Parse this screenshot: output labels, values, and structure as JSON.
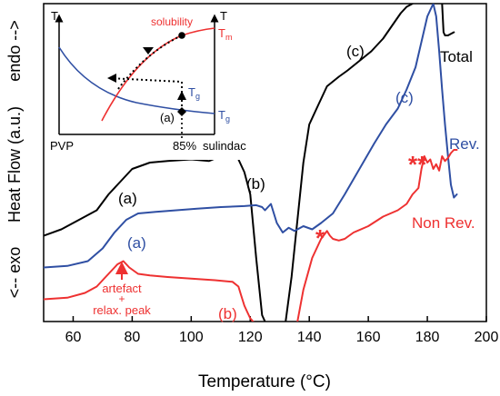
{
  "chart_data": {
    "type": "line",
    "xlabel": "Temperature (°C)",
    "ylabel": "Heat Flow (a.u.)",
    "ylabel_top": "endo -->",
    "ylabel_bottom": "<-- exo",
    "xlim": [
      50,
      200
    ],
    "xticks": [
      60,
      80,
      100,
      120,
      140,
      160,
      180,
      200
    ],
    "ylim": [
      0,
      100
    ],
    "grid": false,
    "series": [
      {
        "name": "Total",
        "color": "#000000",
        "x": [
          50,
          56,
          62,
          68,
          72,
          76,
          80,
          86,
          92,
          100,
          106,
          110,
          112,
          114,
          116,
          118,
          120,
          122,
          124,
          125
        ],
        "y": [
          27,
          29,
          32,
          35,
          40,
          44,
          48,
          50,
          50.5,
          51,
          50.5,
          52,
          54,
          53,
          51,
          47,
          40,
          20,
          2,
          0
        ]
      },
      {
        "name": "Total",
        "color": "#000000",
        "x": [
          132,
          134,
          136,
          138,
          140,
          143,
          146,
          150,
          153,
          157,
          161,
          165,
          168,
          171,
          173,
          175
        ],
        "y": [
          0,
          14,
          32,
          50,
          62,
          68,
          74,
          77,
          79,
          82,
          85,
          89,
          93,
          97,
          99,
          100
        ]
      },
      {
        "name": "Total",
        "color": "#000000",
        "x": [
          185,
          185.5,
          186,
          187,
          188,
          189
        ],
        "y": [
          100,
          91,
          90,
          90,
          90.5,
          91
        ]
      },
      {
        "name": "Rev.",
        "color": "#2f4fa3",
        "x": [
          50,
          58,
          65,
          70,
          74,
          78,
          82,
          88,
          95,
          102,
          110,
          118,
          122,
          124,
          125,
          127,
          129,
          131,
          133,
          135,
          138,
          141,
          144,
          148,
          152,
          157,
          162,
          166,
          170,
          173,
          176,
          178,
          180,
          182,
          183,
          184,
          185,
          186,
          187,
          188,
          189,
          190
        ],
        "y": [
          17,
          17.5,
          19,
          23,
          28,
          32,
          34,
          34.5,
          35,
          35.5,
          36,
          36.3,
          36.6,
          36,
          35,
          37,
          31,
          28,
          29.5,
          28.5,
          30,
          29,
          31,
          34,
          40,
          48,
          56,
          62,
          67,
          73,
          80,
          88,
          96,
          100,
          96,
          85,
          73,
          62,
          52,
          43,
          39,
          40
        ]
      },
      {
        "name": "Non Rev.",
        "color": "#ee3131",
        "x": [
          50,
          58,
          64,
          68,
          72,
          75,
          77,
          79,
          82,
          86,
          92,
          100,
          108,
          114,
          116,
          117,
          118,
          119,
          120,
          121
        ],
        "y": [
          7,
          7.5,
          9,
          11,
          15,
          18,
          19,
          17,
          15,
          14.5,
          14,
          13.5,
          13,
          12.5,
          11,
          8,
          5,
          3,
          1,
          0
        ]
      },
      {
        "name": "Non Rev.",
        "color": "#ee3131",
        "x": [
          136,
          138,
          141,
          144,
          146,
          147,
          148,
          150,
          152,
          155,
          160,
          165,
          170,
          173,
          175,
          176,
          177,
          178,
          179,
          180,
          181,
          182,
          183,
          184,
          185,
          186,
          187,
          188,
          189,
          190
        ],
        "y": [
          0,
          10,
          20,
          26,
          28.5,
          27,
          26,
          25.5,
          26,
          28,
          30,
          33,
          35,
          37,
          40,
          41,
          42,
          48,
          52,
          50,
          51,
          48,
          49.5,
          47.5,
          52,
          50.5,
          51.5,
          53,
          54,
          54
        ]
      }
    ],
    "series_labels": [
      {
        "text": "Total",
        "color": "#000000"
      },
      {
        "text": "Rev.",
        "color": "#2f4fa3"
      },
      {
        "text": "Non Rev.",
        "color": "#ee3131"
      }
    ],
    "annotations": [
      {
        "text": "(a)",
        "color": "#000000",
        "x": 81,
        "y": 52
      },
      {
        "text": "(b)",
        "color": "#000000",
        "x": 130,
        "y": 60
      },
      {
        "text": "(c)",
        "color": "#000000",
        "x": 159,
        "y": 105
      },
      {
        "text": "(a)",
        "color": "#2f4fa3",
        "x": 79,
        "y": 30
      },
      {
        "text": "(c)",
        "color": "#2f4fa3",
        "x": 170,
        "y": 79
      },
      {
        "text": "(b)",
        "color": "#ee3131",
        "x": 117,
        "y": 0.5
      },
      {
        "text": "*",
        "color": "#ee3131",
        "x": 145,
        "y": 32
      },
      {
        "text": "**",
        "color": "#ee3131",
        "x": 180,
        "y": 56
      },
      {
        "text": "artefact",
        "color": "#ee3131",
        "x": 77,
        "y": 8
      },
      {
        "text": "+",
        "color": "#ee3131",
        "x": 77,
        "y": 5
      },
      {
        "text": "relax. peak",
        "color": "#ee3131",
        "x": 77,
        "y": 2
      }
    ],
    "inset": {
      "x_left_label": "PVP",
      "x_right_label": "sulindac",
      "composition_label": "85%",
      "y_label": "T",
      "curves": [
        {
          "text": "Tm",
          "main": "T",
          "sub": "m",
          "color": "#ee3131"
        },
        {
          "text": "Tg",
          "main": "T",
          "sub": "g",
          "color": "#2f4fa3"
        }
      ],
      "solubility_label": "solubility",
      "path_tg_label": {
        "main": "T",
        "sub": "g"
      },
      "path_label": "(a)"
    }
  }
}
